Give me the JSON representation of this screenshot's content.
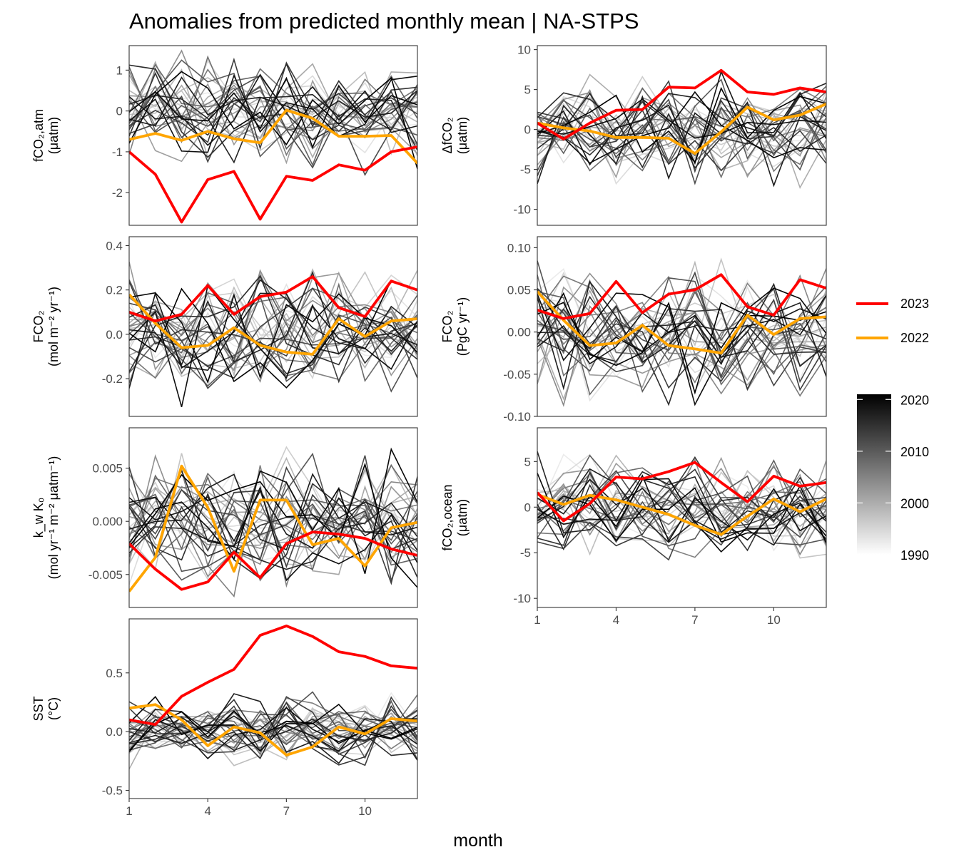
{
  "title": "Anomalies from predicted monthly mean | NA-STPS",
  "xlabel": "month",
  "legend": {
    "series": [
      {
        "name": "2023",
        "color": "#ff0000"
      },
      {
        "name": "2022",
        "color": "#ffa500"
      }
    ],
    "colorbar": {
      "ticks": [
        "2020",
        "2010",
        "2000",
        "1990"
      ],
      "range": [
        1990,
        2021
      ],
      "low_color": "#ffffff",
      "high_color": "#000000"
    }
  },
  "chart_data": [
    {
      "id": "fco2atm",
      "type": "line",
      "ylabel": [
        "fCO₂,atm",
        "(μatm)"
      ],
      "ylim": [
        -2.8,
        1.6
      ],
      "yticks": [
        1,
        0,
        -1,
        -2
      ],
      "ytick_labels": [
        "1",
        "0",
        "-1",
        "-2"
      ],
      "xlim": [
        1,
        12
      ],
      "xticks": [
        1,
        4,
        7,
        10
      ],
      "show_xticks": false,
      "grid": false,
      "x": [
        1,
        2,
        3,
        4,
        5,
        6,
        7,
        8,
        9,
        10,
        11,
        12
      ],
      "series": [
        {
          "name": "2023",
          "values": [
            -1.0,
            -1.55,
            -2.72,
            -1.68,
            -1.48,
            -2.65,
            -1.6,
            -1.7,
            -1.32,
            -1.45,
            -1.0,
            -0.88
          ]
        },
        {
          "name": "2022",
          "values": [
            -0.7,
            -0.55,
            -0.72,
            -0.5,
            -0.68,
            -0.78,
            0.02,
            -0.18,
            -0.62,
            -0.62,
            -0.6,
            -1.28
          ]
        }
      ],
      "background": {
        "years": [
          1990,
          2021
        ],
        "spread": 0.55
      }
    },
    {
      "id": "dfco2",
      "type": "line",
      "ylabel": [
        "ΔfCO₂",
        "(μatm)"
      ],
      "ylim": [
        -12,
        10.5
      ],
      "yticks": [
        10,
        5,
        0,
        -5,
        -10
      ],
      "ytick_labels": [
        "10",
        "5",
        "0",
        "-5",
        "-10"
      ],
      "xlim": [
        1,
        12
      ],
      "xticks": [
        1,
        4,
        7,
        10
      ],
      "show_xticks": false,
      "grid": false,
      "x": [
        1,
        2,
        3,
        4,
        5,
        6,
        7,
        8,
        9,
        10,
        11,
        12
      ],
      "series": [
        {
          "name": "2023",
          "values": [
            0.8,
            -1.2,
            0.8,
            2.4,
            2.5,
            5.3,
            5.2,
            7.4,
            4.7,
            4.4,
            5.2,
            4.7
          ]
        },
        {
          "name": "2022",
          "values": [
            0.8,
            0.2,
            -0.2,
            -1.0,
            -1.0,
            -1.1,
            -3.0,
            -0.3,
            2.8,
            1.2,
            1.8,
            3.2
          ]
        }
      ],
      "background": {
        "years": [
          1990,
          2021
        ],
        "spread": 2.8
      }
    },
    {
      "id": "fco2flux",
      "type": "line",
      "ylabel": [
        "FCO₂",
        "(mol m⁻² yr⁻¹)"
      ],
      "ylim": [
        -0.37,
        0.44
      ],
      "yticks": [
        0.4,
        0.2,
        0.0,
        -0.2
      ],
      "ytick_labels": [
        "0.4",
        "0.2",
        "0.0",
        "-0.2"
      ],
      "xlim": [
        1,
        12
      ],
      "xticks": [
        1,
        4,
        7,
        10
      ],
      "show_xticks": false,
      "grid": false,
      "x": [
        1,
        2,
        3,
        4,
        5,
        6,
        7,
        8,
        9,
        10,
        11,
        12
      ],
      "series": [
        {
          "name": "2023",
          "values": [
            0.1,
            0.06,
            0.09,
            0.22,
            0.09,
            0.17,
            0.19,
            0.26,
            0.12,
            0.08,
            0.24,
            0.2
          ]
        },
        {
          "name": "2022",
          "values": [
            0.18,
            0.05,
            -0.06,
            -0.05,
            0.03,
            -0.05,
            -0.08,
            -0.09,
            0.07,
            -0.01,
            0.06,
            0.07
          ]
        }
      ],
      "background": {
        "years": [
          1990,
          2021
        ],
        "spread": 0.13
      }
    },
    {
      "id": "fco2pgc",
      "type": "line",
      "ylabel": [
        "FCO₂",
        "(PgC yr⁻¹)"
      ],
      "ylim": [
        -0.1,
        0.113
      ],
      "yticks": [
        0.1,
        0.05,
        0.0,
        -0.05,
        -0.1
      ],
      "ytick_labels": [
        "0.10",
        "0.05",
        "0.00",
        "-0.05",
        "-0.10"
      ],
      "xlim": [
        1,
        12
      ],
      "xticks": [
        1,
        4,
        7,
        10
      ],
      "show_xticks": false,
      "grid": false,
      "x": [
        1,
        2,
        3,
        4,
        5,
        6,
        7,
        8,
        9,
        10,
        11,
        12
      ],
      "series": [
        {
          "name": "2023",
          "values": [
            0.026,
            0.016,
            0.022,
            0.06,
            0.023,
            0.045,
            0.05,
            0.068,
            0.03,
            0.02,
            0.062,
            0.052
          ]
        },
        {
          "name": "2022",
          "values": [
            0.048,
            0.014,
            -0.016,
            -0.013,
            0.008,
            -0.016,
            -0.02,
            -0.025,
            0.02,
            -0.003,
            0.016,
            0.018
          ]
        }
      ],
      "background": {
        "years": [
          1990,
          2021
        ],
        "spread": 0.034
      }
    },
    {
      "id": "kw",
      "type": "line",
      "ylabel": [
        "k_w K₀",
        "(mol yr⁻¹ m⁻² μatm⁻¹)"
      ],
      "ylim": [
        -0.0081,
        0.0088
      ],
      "yticks": [
        0.005,
        0.0,
        -0.005
      ],
      "ytick_labels": [
        "0.005",
        "0.000",
        "-0.005"
      ],
      "xlim": [
        1,
        12
      ],
      "xticks": [
        1,
        4,
        7,
        10
      ],
      "show_xticks": false,
      "grid": false,
      "x": [
        1,
        2,
        3,
        4,
        5,
        6,
        7,
        8,
        9,
        10,
        11,
        12
      ],
      "series": [
        {
          "name": "2023",
          "values": [
            -0.0021,
            -0.0045,
            -0.0064,
            -0.0057,
            -0.0029,
            -0.0053,
            -0.0021,
            -0.001,
            -0.0012,
            -0.0016,
            -0.0026,
            -0.0032
          ]
        },
        {
          "name": "2022",
          "values": [
            -0.0066,
            -0.0034,
            0.0052,
            0.0013,
            -0.0047,
            0.002,
            0.002,
            -0.0022,
            -0.0016,
            -0.0042,
            -0.0006,
            -0.0001
          ]
        }
      ],
      "background": {
        "years": [
          1990,
          2021
        ],
        "spread": 0.0028
      }
    },
    {
      "id": "fco2ocean",
      "type": "line",
      "ylabel": [
        "fCO₂,ocean",
        "(μatm)"
      ],
      "ylim": [
        -11,
        8.7
      ],
      "yticks": [
        5,
        0,
        -5,
        -10
      ],
      "ytick_labels": [
        "5",
        "0",
        "-5",
        "-10"
      ],
      "xlim": [
        1,
        12
      ],
      "xticks": [
        1,
        4,
        7,
        10
      ],
      "xtick_labels": [
        "1",
        "4",
        "7",
        "10"
      ],
      "show_xticks": true,
      "grid": false,
      "x": [
        1,
        2,
        3,
        4,
        5,
        6,
        7,
        8,
        9,
        10,
        11,
        12
      ],
      "series": [
        {
          "name": "2023",
          "values": [
            1.6,
            -1.5,
            0.4,
            3.3,
            3.1,
            3.9,
            4.9,
            2.7,
            0.6,
            3.4,
            2.3,
            2.7
          ]
        },
        {
          "name": "2022",
          "values": [
            1.4,
            0.3,
            1.3,
            0.8,
            0.0,
            -0.8,
            -2.0,
            -3.0,
            -1.0,
            0.9,
            -0.5,
            0.9
          ]
        }
      ],
      "background": {
        "years": [
          1990,
          2021
        ],
        "spread": 2.4
      }
    },
    {
      "id": "sst",
      "type": "line",
      "ylabel": [
        "SST",
        "(°C)"
      ],
      "ylim": [
        -0.57,
        0.96
      ],
      "yticks": [
        0.5,
        0.0,
        -0.5
      ],
      "ytick_labels": [
        "0.5",
        "0.0",
        "-0.5"
      ],
      "xlim": [
        1,
        12
      ],
      "xticks": [
        1,
        4,
        7,
        10
      ],
      "xtick_labels": [
        "1",
        "4",
        "7",
        "10"
      ],
      "show_xticks": true,
      "grid": false,
      "x": [
        1,
        2,
        3,
        4,
        5,
        6,
        7,
        8,
        9,
        10,
        11,
        12
      ],
      "series": [
        {
          "name": "2023",
          "values": [
            0.1,
            0.06,
            0.3,
            0.42,
            0.53,
            0.82,
            0.9,
            0.81,
            0.68,
            0.64,
            0.56,
            0.54
          ]
        },
        {
          "name": "2022",
          "values": [
            0.2,
            0.23,
            0.1,
            -0.12,
            0.04,
            -0.01,
            -0.2,
            -0.13,
            0.04,
            -0.02,
            0.11,
            0.09
          ]
        }
      ],
      "background": {
        "years": [
          1990,
          2021
        ],
        "spread": 0.13
      }
    }
  ]
}
